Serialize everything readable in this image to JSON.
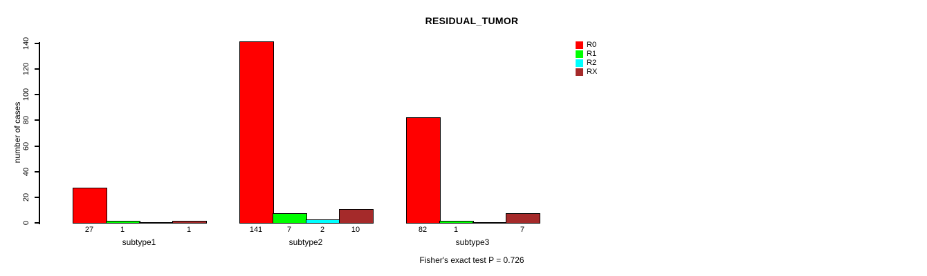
{
  "chart_data": {
    "type": "bar",
    "title": "RESIDUAL_TUMOR",
    "xlabel": "",
    "ylabel": "number of cases",
    "annotation": "Fisher's exact test P = 0.726",
    "categories": [
      "subtype1",
      "subtype2",
      "subtype3"
    ],
    "series": [
      {
        "name": "R0",
        "color": "#FF0000",
        "values": [
          27,
          141,
          82
        ]
      },
      {
        "name": "R1",
        "color": "#00FF00",
        "values": [
          1,
          7,
          1
        ]
      },
      {
        "name": "R2",
        "color": "#00FFFF",
        "values": [
          0,
          2,
          0
        ]
      },
      {
        "name": "RX",
        "color": "#A52A2A",
        "values": [
          1,
          10,
          7
        ]
      }
    ],
    "bar_labels": [
      [
        "27",
        "1",
        "",
        "1"
      ],
      [
        "141",
        "7",
        "2",
        "10"
      ],
      [
        "82",
        "1",
        "",
        "7"
      ]
    ],
    "ylim": [
      0,
      140
    ],
    "yticks": [
      0,
      20,
      40,
      60,
      80,
      100,
      120,
      140
    ],
    "grid": false,
    "legend_position": "right",
    "bar_border_color": "#000000",
    "axis_color": "#000000",
    "background_color": "#FFFFFF"
  }
}
